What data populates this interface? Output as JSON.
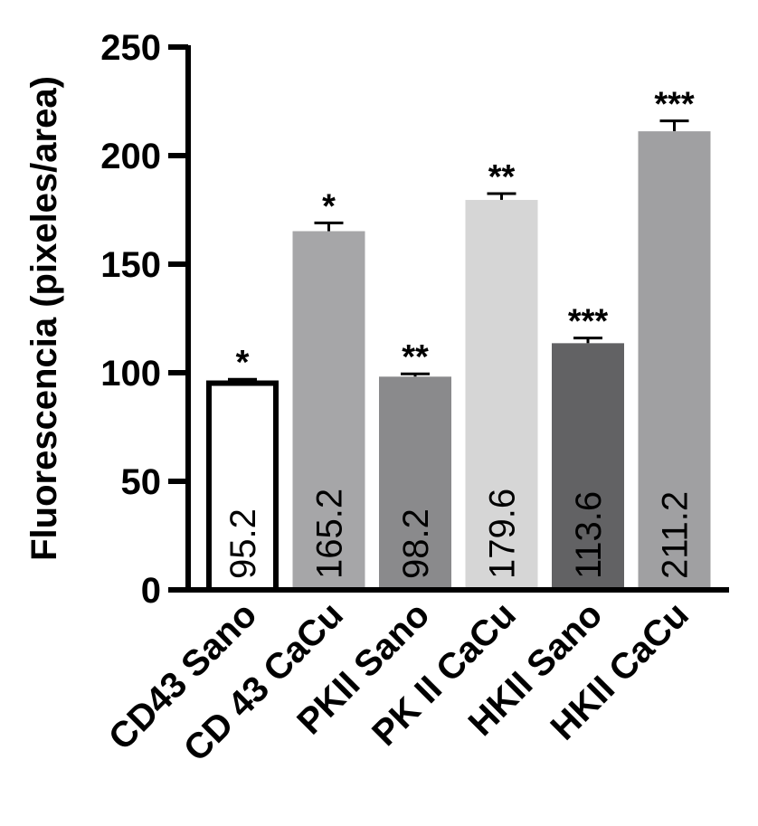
{
  "chart_data": {
    "type": "bar",
    "title": "",
    "xlabel": "",
    "ylabel": "Fluorescencia (pixeles/area)",
    "ylim": [
      0,
      250
    ],
    "yticks": [
      "0",
      "50",
      "100",
      "150",
      "200",
      "250"
    ],
    "grid": false,
    "legend": "none",
    "categories": [
      "CD43 Sano",
      "CD 43 CaCu",
      "PKII Sano",
      "PK II CaCu",
      "HKII Sano",
      "HKII CaCu"
    ],
    "values": [
      95.2,
      165.2,
      98.2,
      179.6,
      113.6,
      211.2
    ],
    "value_labels": [
      "95.2",
      "165.2",
      "98.2",
      "179.6",
      "113.6",
      "211.2"
    ],
    "error_upper": [
      97,
      169,
      99.5,
      182.5,
      116,
      216
    ],
    "significance": [
      "*",
      "*",
      "**",
      "**",
      "***",
      "***"
    ],
    "colors": [
      "#ffffff",
      "#a6a6a8",
      "#8a8a8c",
      "#d6d6d6",
      "#626264",
      "#a0a0a2"
    ]
  }
}
